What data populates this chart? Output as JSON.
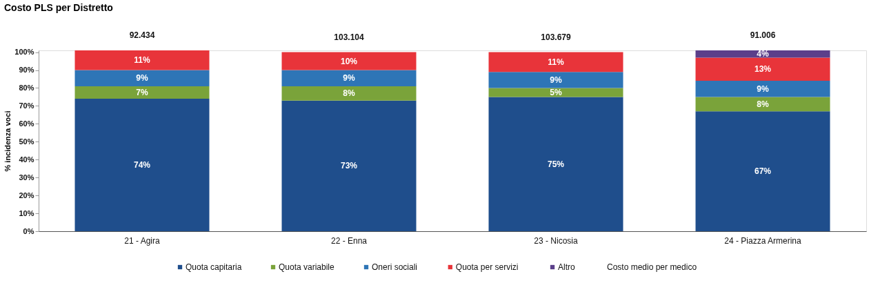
{
  "chart_data": {
    "type": "bar",
    "title": "Costo PLS per Distretto",
    "ylabel": "% incidenza voci",
    "categories": [
      "21 - Agira",
      "22 - Enna",
      "23 - Nicosia",
      "24 - Piazza Armerina"
    ],
    "stacked": true,
    "grid": false,
    "legend": "bottom",
    "ylim": [
      0,
      101
    ],
    "yticks": [
      {
        "value": 0,
        "label": "0%"
      },
      {
        "value": 10,
        "label": "10%"
      },
      {
        "value": 20,
        "label": "20%"
      },
      {
        "value": 30,
        "label": "30%"
      },
      {
        "value": 40,
        "label": "40%"
      },
      {
        "value": 50,
        "label": "50%"
      },
      {
        "value": 60,
        "label": "60%"
      },
      {
        "value": 70,
        "label": "70%"
      },
      {
        "value": 80,
        "label": "80%"
      },
      {
        "value": 90,
        "label": "90%"
      },
      {
        "value": 100,
        "label": "100%"
      }
    ],
    "series": [
      {
        "name": "Quota capitaria",
        "color": "#1f4e8c",
        "values": [
          74,
          73,
          75,
          67
        ],
        "value_labels": [
          "74%",
          "73%",
          "75%",
          "67%"
        ]
      },
      {
        "name": "Quota variabile",
        "color": "#7aa33a",
        "values": [
          7,
          8,
          5,
          8
        ],
        "value_labels": [
          "7%",
          "8%",
          "5%",
          "8%"
        ]
      },
      {
        "name": "Oneri sociali",
        "color": "#2e75b6",
        "values": [
          9,
          9,
          9,
          9
        ],
        "value_labels": [
          "9%",
          "9%",
          "9%",
          "9%"
        ]
      },
      {
        "name": "Quota per servizi",
        "color": "#e8343a",
        "values": [
          11,
          10,
          11,
          13
        ],
        "value_labels": [
          "11%",
          "10%",
          "11%",
          "13%"
        ]
      },
      {
        "name": "Altro",
        "color": "#5b3f8a",
        "values": [
          null,
          null,
          null,
          4
        ],
        "value_labels": [
          null,
          null,
          null,
          "4%"
        ]
      }
    ],
    "annotations": [
      "Costo medio per medico",
      {
        "text": "92.434",
        "x": "21 - Agira",
        "y": 101
      },
      {
        "text": "103.104",
        "x": "22 - Enna",
        "y": 100
      },
      {
        "text": "103.679",
        "x": "23 - Nicosia",
        "y": 100
      },
      {
        "text": "91.006",
        "x": "24 - Piazza Armerina",
        "y": 101
      }
    ]
  }
}
